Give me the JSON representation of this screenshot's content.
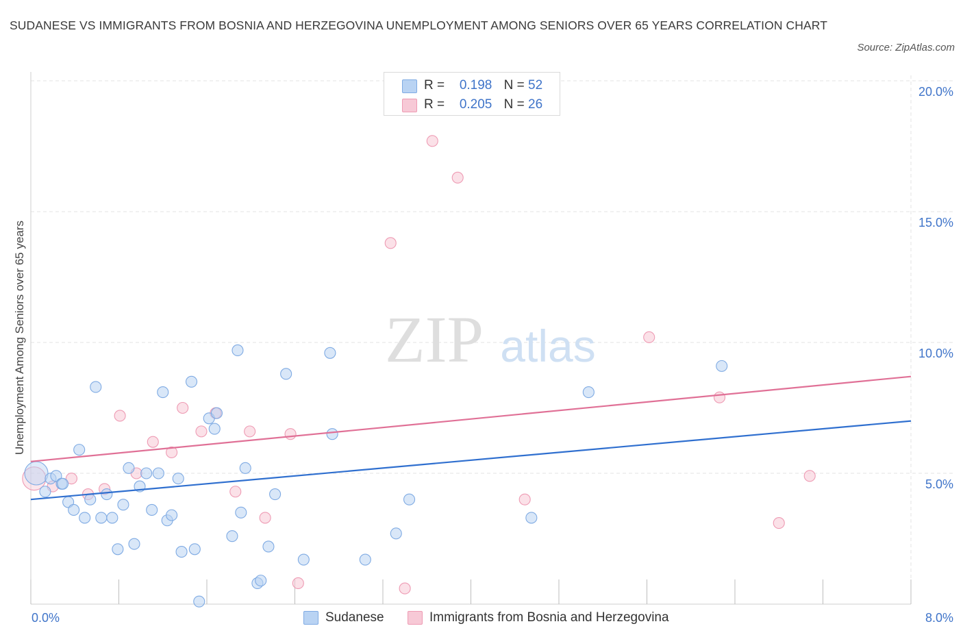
{
  "title": "SUDANESE VS IMMIGRANTS FROM BOSNIA AND HERZEGOVINA UNEMPLOYMENT AMONG SENIORS OVER 65 YEARS CORRELATION CHART",
  "source": "Source: ZipAtlas.com",
  "watermark": {
    "zip": "ZIP",
    "atlas": "atlas"
  },
  "colors": {
    "blue_fill": "#b9d3f3",
    "blue_stroke": "#7eaae3",
    "blue_line": "#2f6fcf",
    "pink_fill": "#f7c9d6",
    "pink_stroke": "#ee9ab3",
    "pink_line": "#e07096",
    "accent": "#3f74c9",
    "grid": "#e3e3e3"
  },
  "legend": {
    "rows": [
      {
        "r_label": "R = ",
        "r_value": "0.198",
        "n_label": "N = ",
        "n_value": "52",
        "color": "blue"
      },
      {
        "r_label": "R = ",
        "r_value": "0.205",
        "n_label": "N = ",
        "n_value": "26",
        "color": "pink"
      }
    ]
  },
  "bottom_legend": {
    "series1": "Sudanese",
    "series2": "Immigrants from Bosnia and Herzegovina"
  },
  "chart_data": {
    "type": "scatter",
    "title": "SUDANESE VS IMMIGRANTS FROM BOSNIA AND HERZEGOVINA UNEMPLOYMENT AMONG SENIORS OVER 65 YEARS CORRELATION CHART",
    "xlabel": "",
    "ylabel": "Unemployment Among Seniors over 65 years",
    "xlim": [
      0,
      8
    ],
    "ylim": [
      0,
      20
    ],
    "x_tick_labels": [
      "0.0%",
      "8.0%"
    ],
    "y_ticks": [
      5,
      10,
      15,
      20
    ],
    "y_tick_labels": [
      "5.0%",
      "10.0%",
      "15.0%",
      "20.0%"
    ],
    "grid": true,
    "legend_position": "top-center",
    "series": [
      {
        "name": "Sudanese",
        "color": "blue",
        "trend": {
          "x": [
            0,
            8
          ],
          "y": [
            4.0,
            7.0
          ]
        },
        "points": [
          {
            "x": 0.05,
            "y": 5.0,
            "big": true
          },
          {
            "x": 0.13,
            "y": 4.3
          },
          {
            "x": 0.18,
            "y": 4.8
          },
          {
            "x": 0.23,
            "y": 4.9
          },
          {
            "x": 0.28,
            "y": 4.6
          },
          {
            "x": 0.34,
            "y": 3.9
          },
          {
            "x": 0.39,
            "y": 3.6
          },
          {
            "x": 0.44,
            "y": 5.9
          },
          {
            "x": 0.49,
            "y": 3.3
          },
          {
            "x": 0.54,
            "y": 4.0
          },
          {
            "x": 0.59,
            "y": 8.3
          },
          {
            "x": 0.64,
            "y": 3.3
          },
          {
            "x": 0.69,
            "y": 4.2
          },
          {
            "x": 0.74,
            "y": 3.3
          },
          {
            "x": 0.79,
            "y": 2.1
          },
          {
            "x": 0.84,
            "y": 3.8
          },
          {
            "x": 0.89,
            "y": 5.2
          },
          {
            "x": 0.94,
            "y": 2.3
          },
          {
            "x": 0.99,
            "y": 4.5
          },
          {
            "x": 1.05,
            "y": 5.0
          },
          {
            "x": 1.1,
            "y": 3.6
          },
          {
            "x": 1.16,
            "y": 5.0
          },
          {
            "x": 1.2,
            "y": 8.1
          },
          {
            "x": 1.24,
            "y": 3.2
          },
          {
            "x": 1.28,
            "y": 3.4
          },
          {
            "x": 1.34,
            "y": 4.8
          },
          {
            "x": 1.37,
            "y": 2.0
          },
          {
            "x": 1.46,
            "y": 8.5
          },
          {
            "x": 1.49,
            "y": 2.1
          },
          {
            "x": 1.53,
            "y": 0.1
          },
          {
            "x": 1.62,
            "y": 7.1
          },
          {
            "x": 1.67,
            "y": 6.7
          },
          {
            "x": 1.69,
            "y": 7.3
          },
          {
            "x": 1.83,
            "y": 2.6
          },
          {
            "x": 1.88,
            "y": 9.7
          },
          {
            "x": 1.91,
            "y": 3.5
          },
          {
            "x": 1.95,
            "y": 5.2
          },
          {
            "x": 2.06,
            "y": 0.8
          },
          {
            "x": 2.09,
            "y": 0.9
          },
          {
            "x": 2.16,
            "y": 2.2
          },
          {
            "x": 2.22,
            "y": 4.2
          },
          {
            "x": 2.32,
            "y": 8.8
          },
          {
            "x": 2.48,
            "y": 1.7
          },
          {
            "x": 2.72,
            "y": 9.6
          },
          {
            "x": 2.74,
            "y": 6.5
          },
          {
            "x": 3.04,
            "y": 1.7
          },
          {
            "x": 3.32,
            "y": 2.7
          },
          {
            "x": 3.44,
            "y": 4.0
          },
          {
            "x": 4.55,
            "y": 3.3
          },
          {
            "x": 5.07,
            "y": 8.1
          },
          {
            "x": 6.28,
            "y": 9.1
          },
          {
            "x": 0.29,
            "y": 4.6
          }
        ]
      },
      {
        "name": "Immigrants from Bosnia and Herzegovina",
        "color": "pink",
        "trend": {
          "x": [
            0,
            8
          ],
          "y": [
            5.45,
            8.7
          ]
        },
        "points": [
          {
            "x": 0.03,
            "y": 4.8,
            "big": true
          },
          {
            "x": 0.2,
            "y": 4.5
          },
          {
            "x": 0.37,
            "y": 4.8
          },
          {
            "x": 0.52,
            "y": 4.2
          },
          {
            "x": 0.67,
            "y": 4.4
          },
          {
            "x": 0.81,
            "y": 7.2
          },
          {
            "x": 0.96,
            "y": 5.0
          },
          {
            "x": 1.11,
            "y": 6.2
          },
          {
            "x": 1.28,
            "y": 5.8
          },
          {
            "x": 1.38,
            "y": 7.5
          },
          {
            "x": 1.55,
            "y": 6.6
          },
          {
            "x": 1.68,
            "y": 7.3
          },
          {
            "x": 1.86,
            "y": 4.3
          },
          {
            "x": 1.99,
            "y": 6.6
          },
          {
            "x": 2.13,
            "y": 3.3
          },
          {
            "x": 2.36,
            "y": 6.5
          },
          {
            "x": 2.43,
            "y": 0.8
          },
          {
            "x": 3.27,
            "y": 13.8
          },
          {
            "x": 3.4,
            "y": 0.6
          },
          {
            "x": 3.65,
            "y": 17.7
          },
          {
            "x": 3.88,
            "y": 16.3
          },
          {
            "x": 4.49,
            "y": 4.0
          },
          {
            "x": 5.62,
            "y": 10.2
          },
          {
            "x": 6.26,
            "y": 7.9
          },
          {
            "x": 6.8,
            "y": 3.1
          },
          {
            "x": 7.08,
            "y": 4.9
          }
        ]
      }
    ]
  }
}
